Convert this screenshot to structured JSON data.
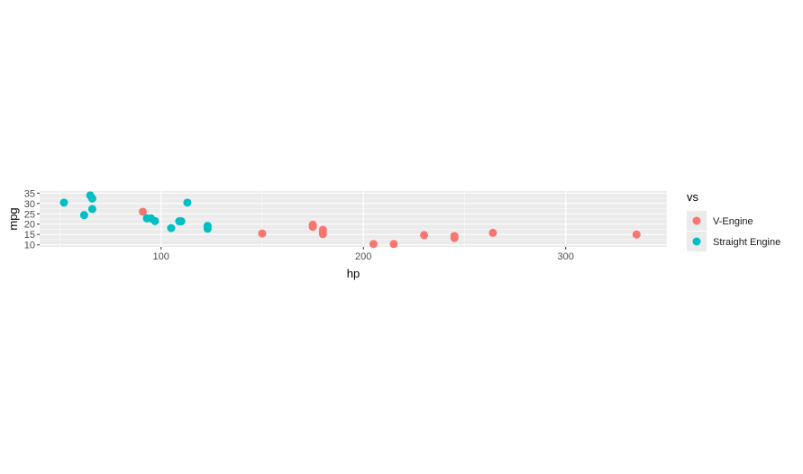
{
  "chart_data": {
    "type": "scatter",
    "title": "",
    "xlabel": "hp",
    "ylabel": "mpg",
    "xlim": [
      40,
      350
    ],
    "ylim": [
      9,
      36
    ],
    "x_ticks": [
      100,
      200,
      300
    ],
    "y_ticks": [
      10,
      15,
      20,
      25,
      30,
      35
    ],
    "grid": true,
    "legend": {
      "title": "vs",
      "position": "right"
    },
    "series": [
      {
        "name": "V-Engine",
        "color": "#F8766D",
        "points": [
          {
            "x": 91,
            "y": 26.0
          },
          {
            "x": 150,
            "y": 15.5
          },
          {
            "x": 175,
            "y": 18.7
          },
          {
            "x": 175,
            "y": 19.2
          },
          {
            "x": 175,
            "y": 19.7
          },
          {
            "x": 180,
            "y": 16.4
          },
          {
            "x": 180,
            "y": 17.3
          },
          {
            "x": 180,
            "y": 15.2
          },
          {
            "x": 205,
            "y": 10.4
          },
          {
            "x": 215,
            "y": 10.4
          },
          {
            "x": 230,
            "y": 14.7
          },
          {
            "x": 245,
            "y": 14.3
          },
          {
            "x": 245,
            "y": 13.3
          },
          {
            "x": 264,
            "y": 15.8
          },
          {
            "x": 335,
            "y": 15.0
          }
        ]
      },
      {
        "name": "Straight Engine",
        "color": "#00BFC4",
        "points": [
          {
            "x": 52,
            "y": 30.4
          },
          {
            "x": 62,
            "y": 24.4
          },
          {
            "x": 65,
            "y": 33.9
          },
          {
            "x": 66,
            "y": 32.4
          },
          {
            "x": 66,
            "y": 27.3
          },
          {
            "x": 93,
            "y": 22.8
          },
          {
            "x": 95,
            "y": 22.8
          },
          {
            "x": 97,
            "y": 21.5
          },
          {
            "x": 105,
            "y": 18.1
          },
          {
            "x": 109,
            "y": 21.4
          },
          {
            "x": 110,
            "y": 21.4
          },
          {
            "x": 113,
            "y": 30.4
          },
          {
            "x": 123,
            "y": 19.2
          },
          {
            "x": 123,
            "y": 17.8
          }
        ]
      }
    ]
  }
}
